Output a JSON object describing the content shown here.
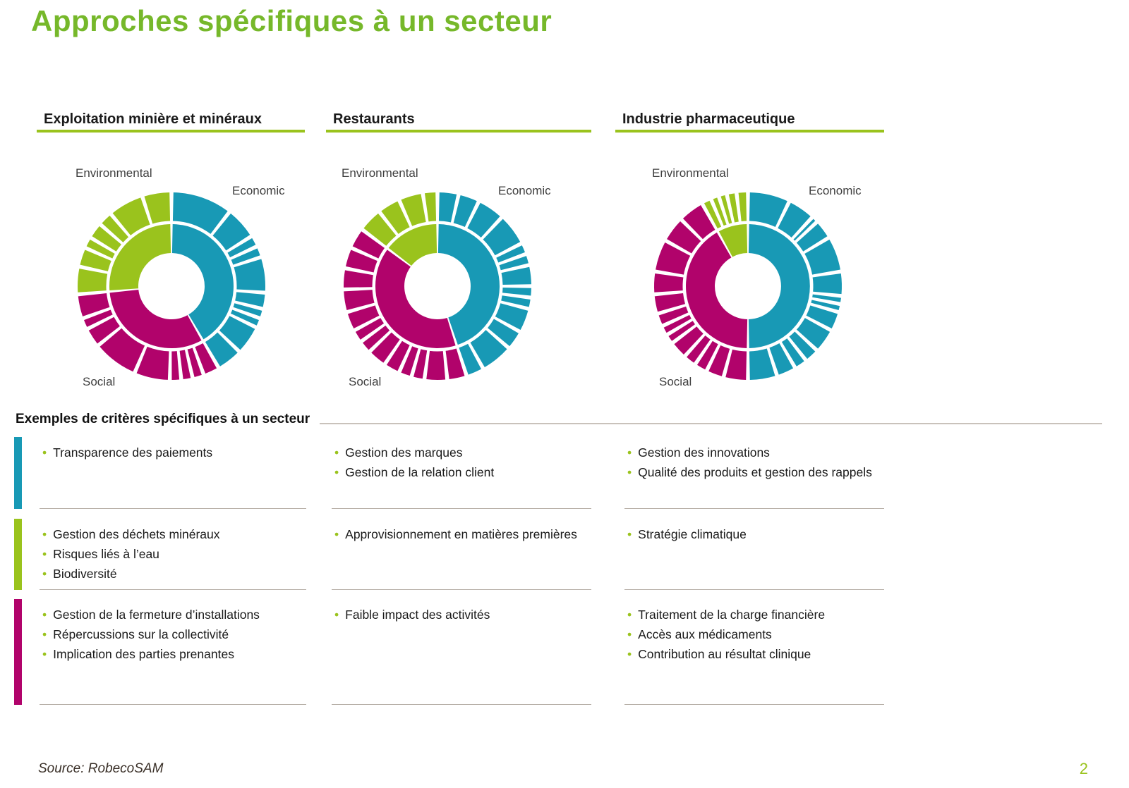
{
  "slide": {
    "title": "Approches spécifiques à un secteur",
    "criteria_heading": "Exemples de critères spécifiques à un secteur",
    "source": "Source: RobecoSAM",
    "page_number": "2"
  },
  "colors": {
    "title_green": "#76B82A",
    "green": "#9AC31D",
    "teal": "#1899B5",
    "magenta": "#B1036B"
  },
  "chart_labels": {
    "environmental": "Environmental",
    "economic": "Economic",
    "social": "Social"
  },
  "sectors": [
    {
      "name": "Exploitation minière et minéraux"
    },
    {
      "name": "Restaurants"
    },
    {
      "name": "Industrie pharmaceutique"
    }
  ],
  "chart_data": [
    {
      "type": "sunburst",
      "sector": "Exploitation minière et minéraux",
      "legend": [
        "Environmental",
        "Economic",
        "Social"
      ],
      "rings": [
        {
          "name": "Economic",
          "color_key": "teal",
          "start": 0,
          "end": 150,
          "outer_segments": [
            38,
            20,
            7,
            7,
            22,
            10,
            6,
            6,
            18,
            16
          ]
        },
        {
          "name": "Social",
          "color_key": "magenta",
          "start": 150,
          "end": 265,
          "outer_segments": [
            10,
            7,
            7,
            7,
            22,
            28,
            12,
            7,
            15
          ]
        },
        {
          "name": "Environmental",
          "color_key": "green",
          "start": 265,
          "end": 360,
          "outer_segments": [
            17,
            12,
            7,
            10,
            9,
            22,
            18
          ]
        }
      ]
    },
    {
      "type": "sunburst",
      "sector": "Restaurants",
      "legend": [
        "Environmental",
        "Economic",
        "Social"
      ],
      "rings": [
        {
          "name": "Economic",
          "color_key": "teal",
          "start": 0,
          "end": 162,
          "outer_segments": [
            13,
            13,
            17,
            20,
            7,
            7,
            13,
            7,
            7,
            15,
            12,
            20,
            11
          ]
        },
        {
          "name": "Social",
          "color_key": "magenta",
          "start": 162,
          "end": 307,
          "outer_segments": [
            12,
            14,
            8,
            8,
            10,
            12,
            8,
            8,
            12,
            14,
            13,
            13,
            13
          ]
        },
        {
          "name": "Environmental",
          "color_key": "green",
          "start": 307,
          "end": 360,
          "outer_segments": [
            15,
            14,
            15,
            9
          ]
        }
      ]
    },
    {
      "type": "sunburst",
      "sector": "Industrie pharmaceutique",
      "legend": [
        "Environmental",
        "Economic",
        "Social"
      ],
      "rings": [
        {
          "name": "Economic",
          "color_key": "teal",
          "start": 0,
          "end": 180,
          "outer_segments": [
            26,
            17,
            4,
            12,
            22,
            15,
            5,
            5,
            12,
            15,
            9,
            8,
            12,
            18
          ]
        },
        {
          "name": "Social",
          "color_key": "magenta",
          "start": 180,
          "end": 331,
          "outer_segments": [
            15,
            11,
            8,
            8,
            11,
            6,
            6,
            8,
            12,
            14,
            20,
            16,
            16
          ]
        },
        {
          "name": "Environmental",
          "color_key": "green",
          "start": 331,
          "end": 360,
          "outer_segments": [
            6,
            5,
            5,
            6,
            7
          ]
        }
      ]
    }
  ],
  "criteria_table": {
    "rows": [
      {
        "category": "Economic",
        "color": "#1899B5",
        "cells": [
          [
            "Transparence des paiements"
          ],
          [
            "Gestion des marques",
            "Gestion de la relation client"
          ],
          [
            "Gestion des innovations",
            "Qualité des produits et gestion des rappels"
          ]
        ]
      },
      {
        "category": "Environmental",
        "color": "#9AC31D",
        "cells": [
          [
            "Gestion des déchets minéraux",
            "Risques liés à l’eau",
            "Biodiversité"
          ],
          [
            "Approvisionnement en matières premières"
          ],
          [
            "Stratégie climatique"
          ]
        ]
      },
      {
        "category": "Social",
        "color": "#B1036B",
        "cells": [
          [
            "Gestion de la fermeture d’installations",
            "Répercussions sur la collectivité",
            "Implication des parties prenantes"
          ],
          [
            "Faible impact des activités"
          ],
          [
            "Traitement de la charge financière",
            "Accès aux médicaments",
            "Contribution au résultat clinique"
          ]
        ]
      }
    ]
  }
}
